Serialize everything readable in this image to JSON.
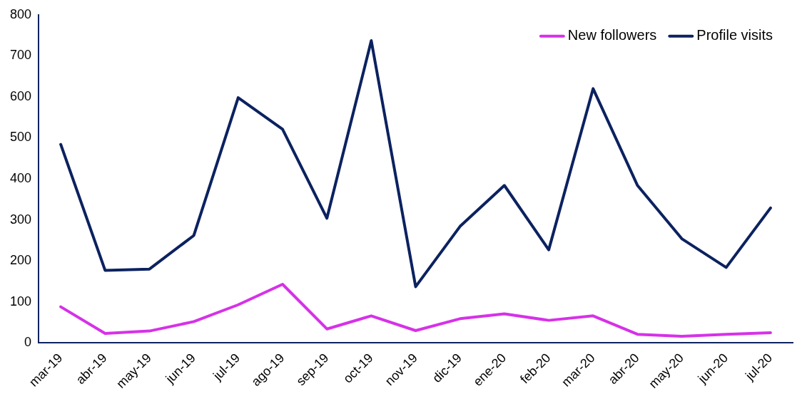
{
  "chart_data": {
    "type": "line",
    "categories": [
      "mar-19",
      "abr-19",
      "may-19",
      "jun-19",
      "jul-19",
      "ago-19",
      "sep-19",
      "oct-19",
      "nov-19",
      "dic-19",
      "ene-20",
      "feb-20",
      "mar-20",
      "abr-20",
      "may-20",
      "jun-20",
      "jul-20"
    ],
    "series": [
      {
        "name": "New followers",
        "color": "#d631e8",
        "values": [
          88,
          23,
          29,
          52,
          93,
          143,
          34,
          66,
          30,
          59,
          71,
          55,
          66,
          21,
          16,
          21,
          25
        ]
      },
      {
        "name": "Profile visits",
        "color": "#0c2260",
        "values": [
          484,
          177,
          180,
          262,
          598,
          521,
          304,
          737,
          137,
          284,
          384,
          227,
          620,
          384,
          254,
          184,
          329
        ]
      }
    ],
    "ylim": [
      0,
      800
    ],
    "yticks": [
      0,
      100,
      200,
      300,
      400,
      500,
      600,
      700,
      800
    ],
    "grid": false,
    "legend": "top right",
    "marker": "none",
    "line_style": "solid"
  }
}
